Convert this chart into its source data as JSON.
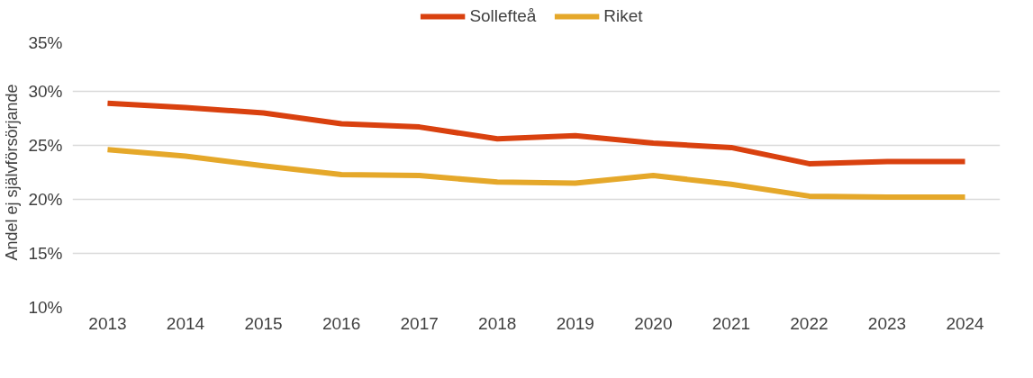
{
  "chart_data": {
    "type": "line",
    "ylabel": "Andel ej självförsörjande",
    "categories": [
      "2013",
      "2014",
      "2015",
      "2016",
      "2017",
      "2018",
      "2019",
      "2020",
      "2021",
      "2022",
      "2023",
      "2024"
    ],
    "series": [
      {
        "name": "Sollefteå",
        "color": "#d9410f",
        "values": [
          28.9,
          28.5,
          28.0,
          27.0,
          26.7,
          25.6,
          25.9,
          25.2,
          24.8,
          23.3,
          23.5,
          23.5
        ]
      },
      {
        "name": "Riket",
        "color": "#e5a82a",
        "values": [
          24.6,
          24.0,
          23.1,
          22.3,
          22.2,
          21.6,
          21.5,
          22.2,
          21.4,
          20.3,
          20.2,
          20.2
        ]
      }
    ],
    "ylim": [
      10,
      35
    ],
    "yticks": [
      {
        "value": 10,
        "label": "10%"
      },
      {
        "value": 15,
        "label": "15%"
      },
      {
        "value": 20,
        "label": "20%"
      },
      {
        "value": 25,
        "label": "25%"
      },
      {
        "value": 30,
        "label": "30%"
      },
      {
        "value": 35,
        "label": "35%"
      }
    ],
    "grid": "y",
    "legend": "top",
    "marker": "none",
    "line_style": "solid"
  }
}
